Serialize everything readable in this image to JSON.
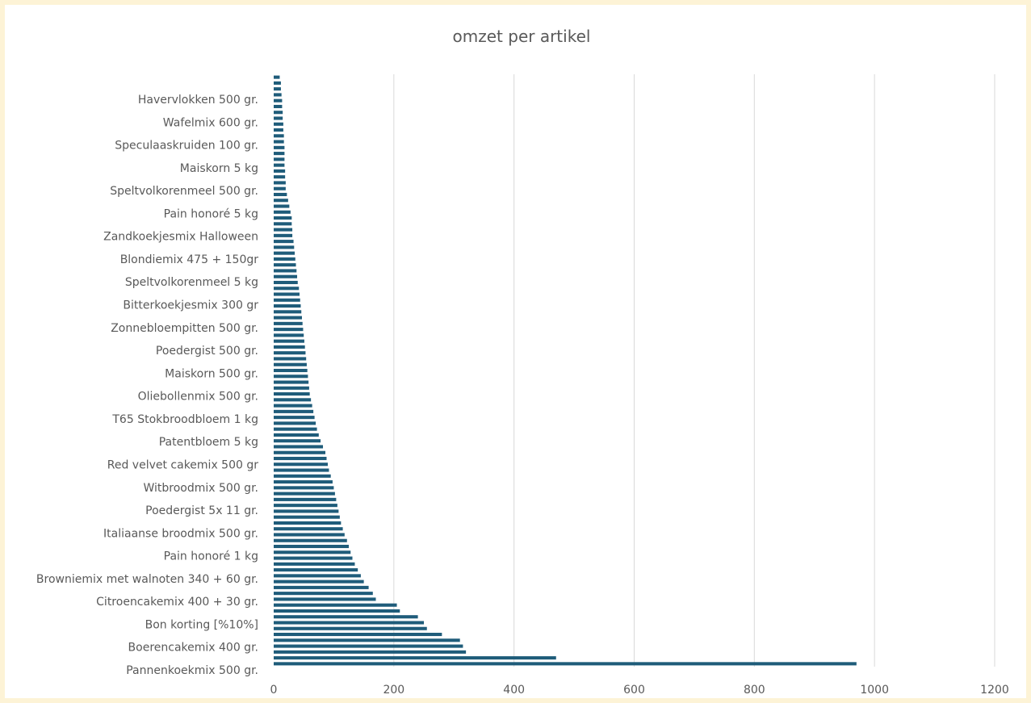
{
  "chart_data": {
    "type": "bar",
    "orientation": "horizontal",
    "title": "omzet per artikel",
    "xlabel": "",
    "ylabel": "",
    "xlim": [
      0,
      1200
    ],
    "x_ticks": [
      0,
      200,
      400,
      600,
      800,
      1000,
      1200
    ],
    "grid": "vertical",
    "legend": "none",
    "bar_color": "#1f5c7a",
    "labeled_categories": [
      "Havervlokken 500 gr.",
      "Wafelmix 600 gr.",
      "Speculaaskruiden 100 gr.",
      "Maiskorn 5 kg",
      "Speltvolkorenmeel 500 gr.",
      "Pain honoré 5 kg",
      "Zandkoekjesmix Halloween",
      "Blondiemix 475 + 150gr",
      "Speltvolkorenmeel 5 kg",
      "Bitterkoekjesmix 300 gr",
      "Zonnebloempitten 500 gr.",
      "Poedergist 500 gr.",
      "Maiskorn 500 gr.",
      "Oliebollenmix 500 gr.",
      "T65 Stokbroodbloem 1 kg",
      "Patentbloem 5 kg",
      "Red velvet cakemix 500 gr",
      "Witbroodmix 500 gr.",
      "Poedergist 5x 11 gr.",
      "Italiaanse broodmix 500 gr.",
      "Pain honoré 1 kg",
      "Browniemix met walnoten 340 + 60 gr.",
      "Citroencakemix 400 + 30 gr.",
      "Bon korting [%10%]",
      "Boerencakemix 400 gr.",
      "Pannenkoekmix 500 gr."
    ],
    "values": [
      10,
      12,
      12,
      13,
      14,
      14,
      15,
      15,
      16,
      16,
      17,
      17,
      18,
      18,
      18,
      18,
      19,
      19,
      20,
      20,
      22,
      24,
      26,
      28,
      30,
      30,
      31,
      31,
      33,
      34,
      35,
      36,
      37,
      38,
      39,
      40,
      42,
      43,
      44,
      45,
      46,
      47,
      48,
      49,
      50,
      51,
      52,
      53,
      54,
      55,
      56,
      57,
      58,
      59,
      60,
      62,
      64,
      66,
      68,
      70,
      72,
      75,
      78,
      82,
      86,
      88,
      90,
      92,
      95,
      98,
      100,
      102,
      104,
      106,
      108,
      110,
      112,
      115,
      118,
      122,
      125,
      128,
      131,
      135,
      140,
      145,
      150,
      158,
      165,
      170,
      205,
      210,
      240,
      250,
      255,
      280,
      310,
      315,
      320,
      470,
      970
    ]
  }
}
